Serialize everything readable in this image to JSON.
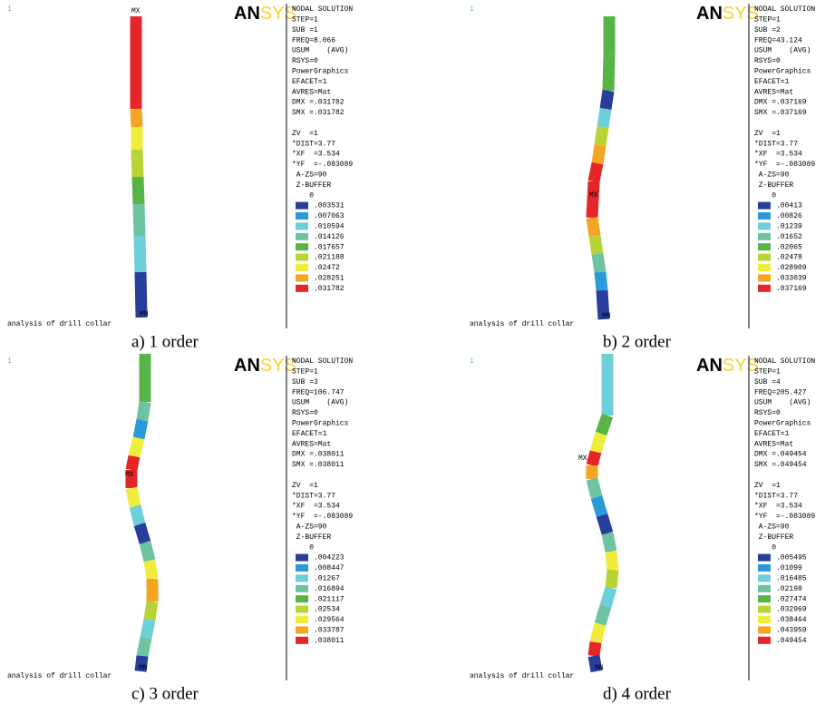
{
  "colors": [
    "#283e9c",
    "#2a9ad8",
    "#6dcfd9",
    "#6ec3a0",
    "#58b447",
    "#b7d334",
    "#f0ec3c",
    "#f4a623",
    "#e4262a"
  ],
  "panels": [
    {
      "index": "1",
      "logo": [
        "AN",
        "SYS"
      ],
      "mx": "MX",
      "mn": "MN",
      "footer": "analysis of drill collar",
      "caption": "a) 1 order",
      "info1": [
        "NODAL SOLUTION",
        "STEP=1",
        "SUB =1",
        "FREQ=8.066",
        "USUM    (AVG)",
        "RSYS=0",
        "PowerGraphics",
        "EFACET=1",
        "AVRES=Mat",
        "DMX =.031782",
        "SMX =.031782"
      ],
      "info2": [
        "ZV  =1",
        "*DIST=3.77",
        "*XF  =3.534",
        "*YF  =-.083089",
        " A-ZS=90",
        " Z-BUFFER",
        "    0"
      ],
      "legend": [
        ".003531",
        ".007063",
        ".010594",
        ".014126",
        ".017657",
        ".021188",
        ".02472",
        ".028251",
        ".031782"
      ]
    },
    {
      "index": "1",
      "logo": [
        "AN",
        "SYS"
      ],
      "mx": "MX",
      "mn": "MN",
      "footer": "analysis of drill collar",
      "caption": "b) 2 order",
      "info1": [
        "NODAL SOLUTION",
        "STEP=1",
        "SUB =2",
        "FREQ=43.124",
        "USUM    (AVG)",
        "RSYS=0",
        "PowerGraphics",
        "EFACET=1",
        "AVRES=Mat",
        "DMX =.037169",
        "SMX =.037169"
      ],
      "info2": [
        "ZV  =1",
        "*DIST=3.77",
        "*XF  =3.534",
        "*YF  =-.083089",
        " A-ZS=90",
        " Z-BUFFER",
        "    0"
      ],
      "legend": [
        ".00413",
        ".00826",
        ".01239",
        ".01652",
        ".02065",
        ".02478",
        ".028909",
        ".033039",
        ".037169"
      ]
    },
    {
      "index": "1",
      "logo": [
        "AN",
        "SYS"
      ],
      "mx": "MX",
      "mn": "MN",
      "footer": "analysis of drill collar",
      "caption": "c) 3 order",
      "info1": [
        "NODAL SOLUTION",
        "STEP=1",
        "SUB =3",
        "FREQ=106.747",
        "USUM    (AVG)",
        "RSYS=0",
        "PowerGraphics",
        "EFACET=1",
        "AVRES=Mat",
        "DMX =.038011",
        "SMX =.038011"
      ],
      "info2": [
        "ZV  =1",
        "*DIST=3.77",
        "*XF  =3.534",
        "*YF  =-.083089",
        " A-ZS=90",
        " Z-BUFFER",
        "    0"
      ],
      "legend": [
        ".004223",
        ".008447",
        ".01267",
        ".016894",
        ".021117",
        ".02534",
        ".029564",
        ".033787",
        ".038011"
      ]
    },
    {
      "index": "1",
      "logo": [
        "AN",
        "SYS"
      ],
      "mx": "MX",
      "mn": "MN",
      "footer": "analysis of drill collar",
      "caption": "d) 4 order",
      "info1": [
        "NODAL SOLUTION",
        "STEP=1",
        "SUB =4",
        "FREQ=205.427",
        "USUM    (AVG)",
        "RSYS=0",
        "PowerGraphics",
        "EFACET=1",
        "AVRES=Mat",
        "DMX =.049454",
        "SMX =.049454"
      ],
      "info2": [
        "ZV  =1",
        "*DIST=3.77",
        "*XF  =3.534",
        "*YF  =-.083089",
        " A-ZS=90",
        " Z-BUFFER",
        "    0"
      ],
      "legend": [
        ".005495",
        ".01099",
        ".016485",
        ".02198",
        ".027474",
        ".032969",
        ".038464",
        ".043959",
        ".049454"
      ]
    }
  ]
}
